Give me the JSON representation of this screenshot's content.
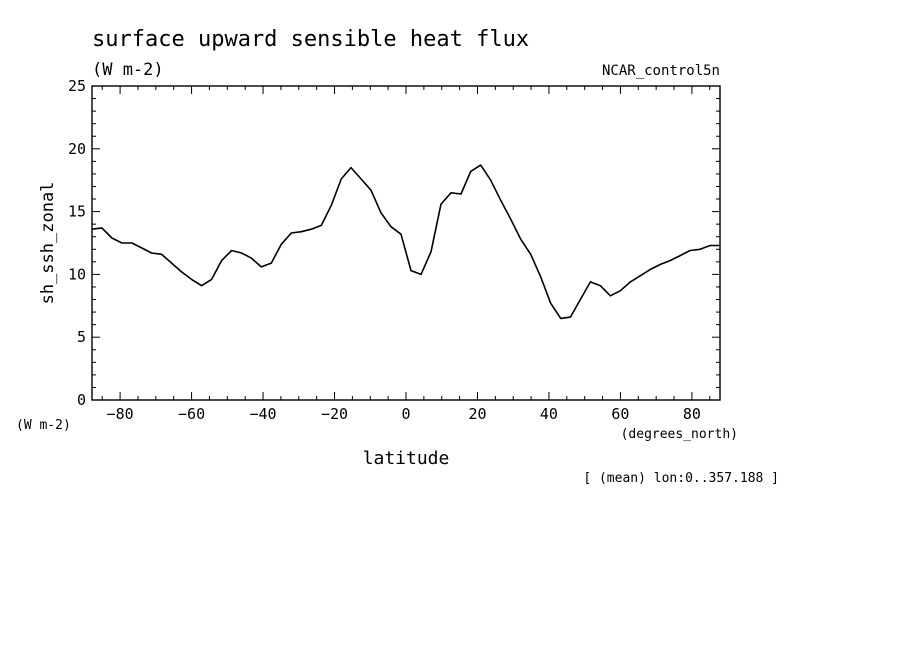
{
  "chart_data": {
    "type": "line",
    "title": "surface upward sensible heat flux",
    "units": "(W m-2)",
    "dataset": "NCAR_control5n",
    "ylabel": "sh_ssh_zonal",
    "y_units_label": "(W m-2)",
    "xlabel": "latitude",
    "x_units_label": "(degrees_north)",
    "footnote": "[ (mean) lon:0..357.188 ]",
    "xlim": [
      -87.8638,
      87.8638
    ],
    "ylim": [
      0,
      25
    ],
    "x_ticks": [
      -80,
      -60,
      -40,
      -20,
      0,
      20,
      40,
      60,
      80
    ],
    "y_ticks": [
      0,
      5,
      10,
      15,
      20,
      25
    ],
    "grid": false,
    "series": [
      {
        "x": [
          -87.86,
          -85.1,
          -82.3,
          -79.5,
          -76.7,
          -73.9,
          -71.2,
          -68.4,
          -65.6,
          -62.8,
          -60.0,
          -57.2,
          -54.4,
          -51.6,
          -48.8,
          -46.0,
          -43.3,
          -40.5,
          -37.7,
          -34.9,
          -32.1,
          -29.3,
          -26.5,
          -23.7,
          -20.9,
          -18.1,
          -15.4,
          -12.6,
          -9.8,
          -7.0,
          -4.2,
          -1.4,
          1.4,
          4.2,
          7.0,
          9.8,
          12.6,
          15.4,
          18.1,
          20.9,
          23.7,
          26.5,
          29.3,
          32.1,
          34.9,
          37.7,
          40.5,
          43.3,
          46.0,
          48.8,
          51.6,
          54.4,
          57.2,
          60.0,
          62.8,
          65.6,
          68.4,
          71.2,
          73.9,
          76.7,
          79.5,
          82.3,
          85.1,
          87.86
        ],
        "y": [
          13.6,
          13.7,
          12.9,
          12.5,
          12.5,
          12.1,
          11.7,
          11.6,
          10.9,
          10.2,
          9.6,
          9.1,
          9.6,
          11.1,
          11.9,
          11.7,
          11.3,
          10.6,
          10.9,
          12.4,
          13.3,
          13.4,
          13.6,
          13.9,
          15.5,
          17.6,
          18.5,
          17.6,
          16.7,
          14.9,
          13.8,
          13.2,
          10.3,
          10.0,
          11.8,
          15.6,
          16.5,
          16.4,
          18.2,
          18.7,
          17.5,
          15.9,
          14.4,
          12.8,
          11.6,
          9.8,
          7.7,
          6.5,
          6.6,
          8.0,
          9.4,
          9.1,
          8.3,
          8.7,
          9.4,
          9.9,
          10.4,
          10.8,
          11.1,
          11.5,
          11.9,
          12.0,
          12.3,
          12.3
        ]
      }
    ]
  }
}
